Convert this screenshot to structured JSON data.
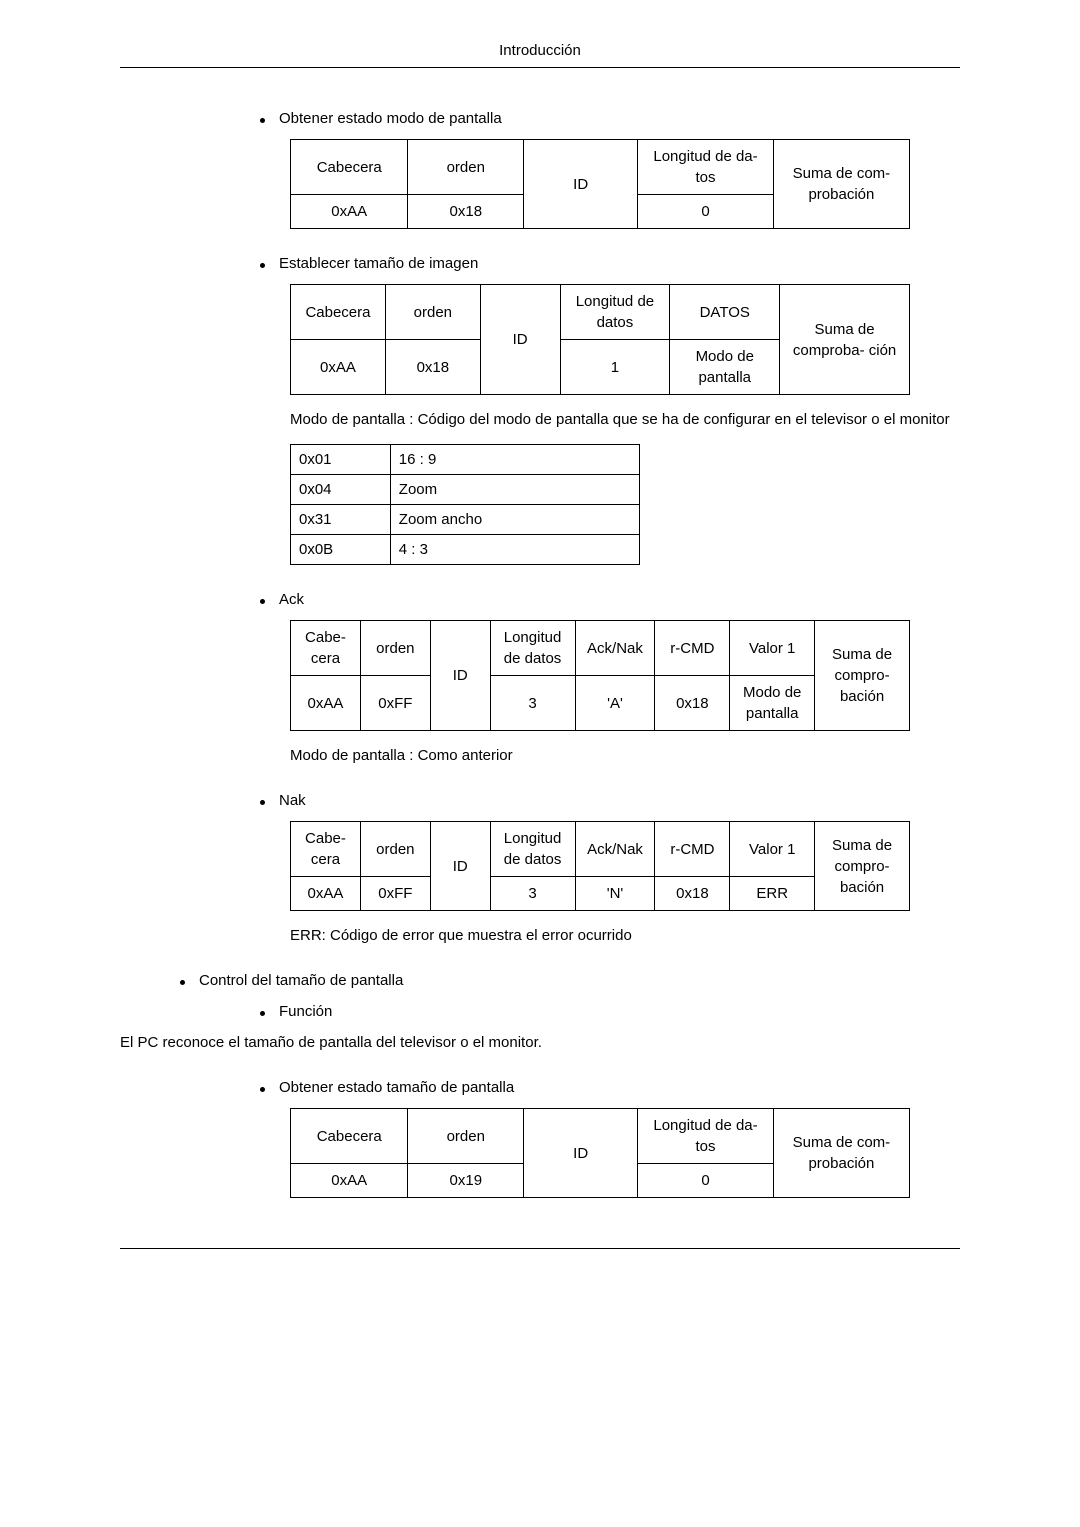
{
  "header_title": "Introducción",
  "s1": {
    "title": "Obtener estado modo de pantalla",
    "hdr": [
      "Cabecera",
      "orden",
      "ID",
      "Longitud de da-\ntos",
      "Suma de com-\nprobación"
    ],
    "row": [
      "0xAA",
      "0x18",
      "",
      "0",
      ""
    ]
  },
  "s2": {
    "title": "Establecer tamaño de imagen",
    "hdr": [
      "Cabecera",
      "orden",
      "ID",
      "Longitud de datos",
      "DATOS",
      "Suma de comproba-\nción"
    ],
    "row": [
      "0xAA",
      "0x18",
      "",
      "1",
      "Modo de pantalla",
      ""
    ],
    "note": "Modo de pantalla : Código del modo de pantalla que se ha de configurar en el televisor o el monitor"
  },
  "kv": [
    [
      "0x01",
      "16 : 9"
    ],
    [
      "0x04",
      "Zoom"
    ],
    [
      "0x31",
      "Zoom ancho"
    ],
    [
      "0x0B",
      "4 : 3"
    ]
  ],
  "s3": {
    "title": "Ack",
    "hdr": [
      "Cabe-\ncera",
      "orden",
      "ID",
      "Longitud de datos",
      "Ack/Nak",
      "r-CMD",
      "Valor 1",
      "Suma de compro-\nbación"
    ],
    "row": [
      "0xAA",
      "0xFF",
      "",
      "3",
      "'A'",
      "0x18",
      "Modo de pantalla",
      ""
    ],
    "note": "Modo de pantalla : Como anterior"
  },
  "s4": {
    "title": "Nak",
    "hdr": [
      "Cabe-\ncera",
      "orden",
      "ID",
      "Longitud de datos",
      "Ack/Nak",
      "r-CMD",
      "Valor 1",
      "Suma de compro-\nbación"
    ],
    "row": [
      "0xAA",
      "0xFF",
      "",
      "3",
      "'N'",
      "0x18",
      "ERR",
      ""
    ],
    "note": "ERR: Código de error que muestra el error ocurrido"
  },
  "s5": {
    "title": "Control del tamaño de pantalla",
    "func_label": "Función",
    "func_text": "El PC reconoce el tamaño de pantalla del televisor o el monitor."
  },
  "s6": {
    "title": "Obtener estado tamaño de pantalla",
    "hdr": [
      "Cabecera",
      "orden",
      "ID",
      "Longitud de da-\ntos",
      "Suma de com-\nprobación"
    ],
    "row": [
      "0xAA",
      "0x19",
      "",
      "0",
      ""
    ]
  },
  "col": {
    "fiveA": [
      120,
      120,
      120,
      140,
      140
    ],
    "six": [
      95,
      95,
      80,
      110,
      110,
      130
    ],
    "eight": [
      70,
      70,
      60,
      85,
      80,
      75,
      85,
      95
    ],
    "kv": [
      100,
      250
    ]
  }
}
